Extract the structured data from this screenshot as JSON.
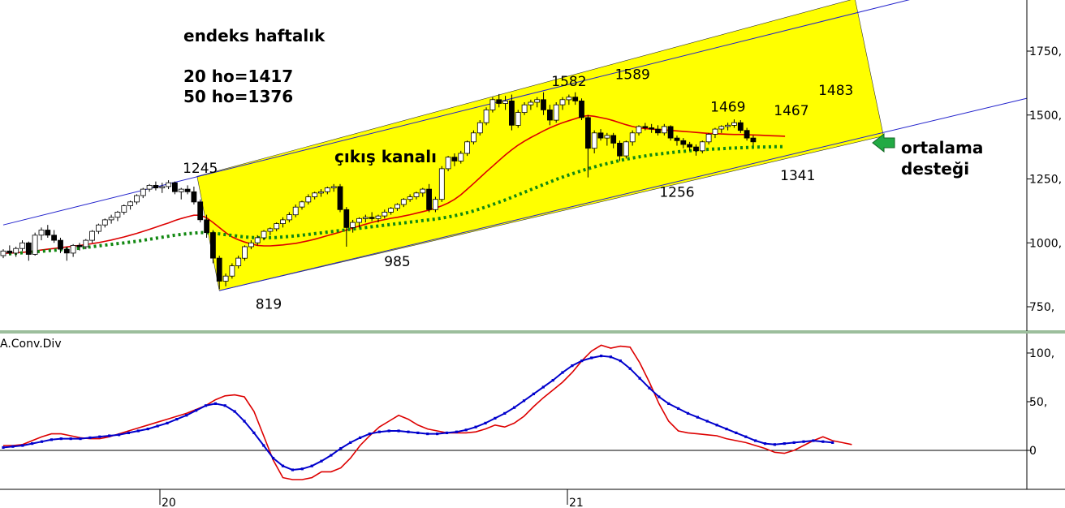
{
  "chart_data": [
    {
      "type": "candlestick",
      "annotations": {
        "title": "endeks haftalık",
        "ma20": "20 ho=1417",
        "ma50": "50 ho=1376",
        "channel": "çıkış kanalı",
        "support_line1": "ortalama",
        "support_line2": "desteği",
        "peaks": [
          {
            "label": "1245",
            "x": 31,
            "y": 1245
          },
          {
            "label": "819",
            "x": 41,
            "y": 819
          },
          {
            "label": "985",
            "x": 62,
            "y": 985
          },
          {
            "label": "1582",
            "x": 89,
            "y": 1582
          },
          {
            "label": "1589",
            "x": 99,
            "y": 1589
          },
          {
            "label": "1256",
            "x": 106,
            "y": 1256
          },
          {
            "label": "1469",
            "x": 113,
            "y": 1469
          },
          {
            "label": "1467",
            "x": 124,
            "y": 1467
          },
          {
            "label": "1341",
            "x": 125,
            "y": 1341
          },
          {
            "label": "1483",
            "x": 131,
            "y": 1483
          }
        ]
      },
      "y_ticks": [
        "1750,",
        "1500,",
        "1250,",
        "1000,",
        "750,"
      ],
      "y_tick_values": [
        1750,
        1500,
        1250,
        1000,
        750
      ],
      "ylim": [
        650,
        1950
      ],
      "xlim": [
        0,
        168
      ],
      "x_tick_labels": [
        {
          "label": "20",
          "x": 25
        },
        {
          "label": "21",
          "x": 90
        }
      ],
      "channel_lines": {
        "upper": [
          [
            0,
            1070
          ],
          [
            145,
            1955
          ]
        ],
        "lower": [
          [
            34,
            813
          ],
          [
            138,
            1418
          ]
        ],
        "blue_upper": [
          [
            0,
            1070
          ],
          [
            145,
            1955
          ]
        ],
        "blue_lower": [
          [
            34,
            813
          ],
          [
            162,
            1570
          ]
        ]
      },
      "candles": [
        [
          950,
          975,
          940,
          968
        ],
        [
          968,
          990,
          955,
          960
        ],
        [
          960,
          985,
          945,
          978
        ],
        [
          978,
          1010,
          968,
          1000
        ],
        [
          1000,
          1005,
          930,
          955
        ],
        [
          955,
          1040,
          950,
          1030
        ],
        [
          1030,
          1060,
          1010,
          1050
        ],
        [
          1050,
          1070,
          1020,
          1030
        ],
        [
          1030,
          1050,
          1000,
          1010
        ],
        [
          1010,
          1020,
          960,
          975
        ],
        [
          975,
          985,
          930,
          960
        ],
        [
          960,
          995,
          945,
          990
        ],
        [
          990,
          1000,
          970,
          985
        ],
        [
          985,
          1015,
          975,
          1010
        ],
        [
          1010,
          1050,
          1000,
          1045
        ],
        [
          1045,
          1075,
          1035,
          1070
        ],
        [
          1070,
          1095,
          1060,
          1090
        ],
        [
          1090,
          1110,
          1075,
          1100
        ],
        [
          1100,
          1125,
          1085,
          1120
        ],
        [
          1120,
          1150,
          1110,
          1145
        ],
        [
          1145,
          1165,
          1130,
          1160
        ],
        [
          1160,
          1190,
          1150,
          1185
        ],
        [
          1185,
          1215,
          1175,
          1210
        ],
        [
          1210,
          1230,
          1200,
          1225
        ],
        [
          1225,
          1240,
          1205,
          1215
        ],
        [
          1215,
          1235,
          1195,
          1220
        ],
        [
          1220,
          1245,
          1210,
          1235
        ],
        [
          1235,
          1240,
          1190,
          1200
        ],
        [
          1200,
          1215,
          1170,
          1210
        ],
        [
          1210,
          1225,
          1190,
          1200
        ],
        [
          1200,
          1220,
          1150,
          1160
        ],
        [
          1160,
          1170,
          1080,
          1090
        ],
        [
          1090,
          1110,
          1020,
          1040
        ],
        [
          1040,
          1050,
          920,
          940
        ],
        [
          940,
          950,
          819,
          850
        ],
        [
          850,
          880,
          830,
          870
        ],
        [
          870,
          920,
          860,
          910
        ],
        [
          910,
          950,
          900,
          940
        ],
        [
          940,
          990,
          930,
          985
        ],
        [
          985,
          1010,
          975,
          1000
        ],
        [
          1000,
          1030,
          990,
          1020
        ],
        [
          1020,
          1050,
          1010,
          1045
        ],
        [
          1045,
          1060,
          1030,
          1055
        ],
        [
          1055,
          1080,
          1045,
          1075
        ],
        [
          1075,
          1100,
          1060,
          1090
        ],
        [
          1090,
          1120,
          1080,
          1110
        ],
        [
          1110,
          1150,
          1100,
          1140
        ],
        [
          1140,
          1165,
          1130,
          1160
        ],
        [
          1160,
          1190,
          1150,
          1180
        ],
        [
          1180,
          1200,
          1170,
          1195
        ],
        [
          1195,
          1210,
          1180,
          1200
        ],
        [
          1200,
          1220,
          1190,
          1215
        ],
        [
          1215,
          1230,
          1200,
          1220
        ],
        [
          1220,
          1230,
          1120,
          1130
        ],
        [
          1130,
          1140,
          985,
          1060
        ],
        [
          1060,
          1090,
          1040,
          1080
        ],
        [
          1080,
          1100,
          1060,
          1095
        ],
        [
          1095,
          1110,
          1080,
          1100
        ],
        [
          1100,
          1120,
          1085,
          1095
        ],
        [
          1095,
          1110,
          1080,
          1105
        ],
        [
          1105,
          1130,
          1095,
          1120
        ],
        [
          1120,
          1140,
          1110,
          1135
        ],
        [
          1135,
          1155,
          1125,
          1150
        ],
        [
          1150,
          1175,
          1140,
          1170
        ],
        [
          1170,
          1190,
          1160,
          1180
        ],
        [
          1180,
          1200,
          1170,
          1195
        ],
        [
          1195,
          1215,
          1180,
          1210
        ],
        [
          1210,
          1230,
          1120,
          1130
        ],
        [
          1130,
          1180,
          1120,
          1170
        ],
        [
          1170,
          1300,
          1160,
          1290
        ],
        [
          1290,
          1340,
          1280,
          1335
        ],
        [
          1335,
          1350,
          1300,
          1320
        ],
        [
          1320,
          1360,
          1310,
          1350
        ],
        [
          1350,
          1400,
          1340,
          1395
        ],
        [
          1395,
          1440,
          1385,
          1430
        ],
        [
          1430,
          1480,
          1420,
          1470
        ],
        [
          1470,
          1530,
          1460,
          1520
        ],
        [
          1520,
          1570,
          1510,
          1560
        ],
        [
          1560,
          1582,
          1530,
          1545
        ],
        [
          1545,
          1575,
          1520,
          1555
        ],
        [
          1555,
          1580,
          1440,
          1460
        ],
        [
          1460,
          1520,
          1450,
          1510
        ],
        [
          1510,
          1550,
          1500,
          1540
        ],
        [
          1540,
          1560,
          1520,
          1550
        ],
        [
          1550,
          1570,
          1530,
          1560
        ],
        [
          1560,
          1589,
          1500,
          1520
        ],
        [
          1520,
          1540,
          1460,
          1480
        ],
        [
          1480,
          1550,
          1470,
          1540
        ],
        [
          1540,
          1570,
          1520,
          1560
        ],
        [
          1560,
          1580,
          1540,
          1570
        ],
        [
          1570,
          1589,
          1540,
          1555
        ],
        [
          1555,
          1565,
          1480,
          1490
        ],
        [
          1490,
          1500,
          1256,
          1370
        ],
        [
          1370,
          1440,
          1350,
          1430
        ],
        [
          1430,
          1445,
          1400,
          1410
        ],
        [
          1410,
          1430,
          1380,
          1420
        ],
        [
          1420,
          1430,
          1370,
          1390
        ],
        [
          1390,
          1400,
          1320,
          1340
        ],
        [
          1340,
          1400,
          1330,
          1395
        ],
        [
          1395,
          1440,
          1380,
          1430
        ],
        [
          1430,
          1460,
          1420,
          1455
        ],
        [
          1455,
          1469,
          1440,
          1450
        ],
        [
          1450,
          1465,
          1430,
          1445
        ],
        [
          1445,
          1460,
          1420,
          1430
        ],
        [
          1430,
          1465,
          1420,
          1455
        ],
        [
          1455,
          1460,
          1400,
          1410
        ],
        [
          1410,
          1420,
          1380,
          1400
        ],
        [
          1400,
          1410,
          1370,
          1385
        ],
        [
          1385,
          1395,
          1360,
          1375
        ],
        [
          1375,
          1385,
          1341,
          1360
        ],
        [
          1360,
          1400,
          1350,
          1395
        ],
        [
          1395,
          1430,
          1385,
          1425
        ],
        [
          1425,
          1450,
          1410,
          1445
        ],
        [
          1445,
          1460,
          1430,
          1455
        ],
        [
          1455,
          1470,
          1440,
          1460
        ],
        [
          1460,
          1483,
          1450,
          1470
        ],
        [
          1470,
          1480,
          1430,
          1440
        ],
        [
          1440,
          1450,
          1400,
          1410
        ],
        [
          1410,
          1420,
          1380,
          1395
        ]
      ],
      "ma20": [
        960,
        960,
        961,
        963,
        965,
        968,
        972,
        975,
        978,
        981,
        984,
        987,
        990,
        993,
        997,
        1001,
        1006,
        1011,
        1017,
        1023,
        1030,
        1037,
        1045,
        1053,
        1061,
        1070,
        1078,
        1087,
        1095,
        1102,
        1108,
        1108,
        1098,
        1080,
        1060,
        1040,
        1023,
        1012,
        1003,
        996,
        990,
        988,
        988,
        990,
        992,
        995,
        998,
        1003,
        1008,
        1014,
        1021,
        1028,
        1035,
        1042,
        1050,
        1058,
        1066,
        1073,
        1080,
        1086,
        1091,
        1096,
        1100,
        1105,
        1110,
        1116,
        1122,
        1128,
        1136,
        1145,
        1156,
        1170,
        1188,
        1210,
        1232,
        1255,
        1278,
        1300,
        1322,
        1344,
        1364,
        1382,
        1398,
        1412,
        1425,
        1438,
        1450,
        1460,
        1470,
        1478,
        1486,
        1494,
        1498,
        1495,
        1490,
        1485,
        1478,
        1470,
        1462,
        1455,
        1450,
        1447,
        1445,
        1443,
        1442,
        1440,
        1438,
        1436,
        1434,
        1432,
        1430,
        1428,
        1427,
        1426,
        1425,
        1424,
        1424,
        1423,
        1422,
        1421,
        1420,
        1419,
        1418,
        1417
      ],
      "ma50": [
        955,
        957,
        959,
        961,
        963,
        965,
        967,
        969,
        971,
        973,
        975,
        977,
        979,
        982,
        985,
        988,
        991,
        994,
        997,
        1000,
        1003,
        1006,
        1010,
        1014,
        1018,
        1022,
        1026,
        1030,
        1033,
        1036,
        1038,
        1040,
        1040,
        1038,
        1035,
        1032,
        1029,
        1026,
        1023,
        1021,
        1020,
        1020,
        1020,
        1021,
        1023,
        1025,
        1027,
        1030,
        1033,
        1036,
        1039,
        1042,
        1045,
        1048,
        1051,
        1054,
        1057,
        1060,
        1063,
        1066,
        1069,
        1072,
        1075,
        1078,
        1081,
        1084,
        1087,
        1090,
        1093,
        1097,
        1101,
        1106,
        1112,
        1118,
        1125,
        1133,
        1141,
        1150,
        1159,
        1168,
        1178,
        1188,
        1198,
        1208,
        1218,
        1228,
        1238,
        1248,
        1257,
        1266,
        1274,
        1282,
        1290,
        1297,
        1304,
        1310,
        1316,
        1322,
        1327,
        1332,
        1336,
        1340,
        1344,
        1347,
        1350,
        1353,
        1356,
        1358,
        1360,
        1362,
        1364,
        1366,
        1367,
        1368,
        1370,
        1371,
        1372,
        1373,
        1374,
        1375,
        1375,
        1376,
        1376,
        1376
      ]
    },
    {
      "type": "line",
      "title": "A.Conv.Div",
      "y_ticks": [
        "100,",
        "50,",
        "0"
      ],
      "y_tick_values": [
        100,
        50,
        0
      ],
      "ylim": [
        -40,
        115
      ],
      "series": [
        {
          "name": "",
          "color": "#dd0000",
          "values": [
            5,
            5,
            6,
            10,
            14,
            17,
            17,
            15,
            13,
            12,
            12,
            14,
            17,
            20,
            23,
            26,
            29,
            32,
            35,
            38,
            42,
            46,
            52,
            56,
            57,
            55,
            40,
            15,
            -10,
            -28,
            -30,
            -30,
            -28,
            -22,
            -22,
            -18,
            -8,
            5,
            15,
            24,
            30,
            36,
            32,
            26,
            22,
            20,
            18,
            18,
            18,
            19,
            22,
            26,
            24,
            28,
            35,
            45,
            54,
            62,
            70,
            80,
            92,
            102,
            108,
            105,
            107,
            106,
            90,
            70,
            48,
            30,
            20,
            18,
            17,
            16,
            15,
            12,
            10,
            8,
            5,
            2,
            -2,
            -3,
            0,
            5,
            10,
            14,
            10,
            8,
            6
          ]
        },
        {
          "name": "",
          "color": "#0000cc",
          "values": [
            3,
            4,
            5,
            7,
            9,
            11,
            12,
            12,
            12,
            13,
            14,
            15,
            16,
            18,
            20,
            22,
            25,
            28,
            32,
            36,
            41,
            46,
            48,
            46,
            40,
            30,
            18,
            5,
            -8,
            -16,
            -20,
            -19,
            -16,
            -11,
            -5,
            2,
            8,
            13,
            17,
            19,
            20,
            20,
            19,
            18,
            17,
            17,
            18,
            19,
            21,
            24,
            28,
            33,
            38,
            44,
            51,
            58,
            65,
            72,
            80,
            87,
            92,
            95,
            97,
            96,
            92,
            84,
            74,
            64,
            55,
            48,
            43,
            38,
            34,
            30,
            26,
            22,
            18,
            14,
            10,
            7,
            6,
            7,
            8,
            9,
            10,
            9,
            8
          ]
        }
      ]
    }
  ]
}
